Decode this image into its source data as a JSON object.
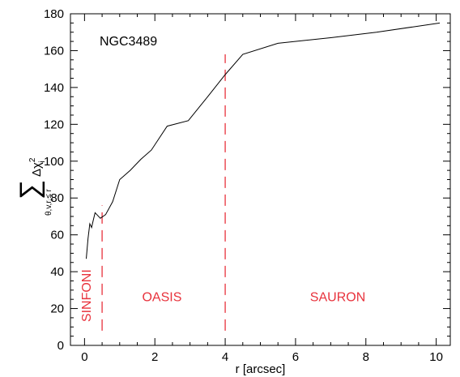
{
  "chart_data": {
    "type": "line",
    "title": "NGC3489",
    "xlabel": "r [arcsec]",
    "ylabel": "Σ θ,v,r_i≤r Δχ²_i",
    "ylabel_parts": {
      "sum_symbol": "∑",
      "subscript": "θ,v,r",
      "subscript_i": "i",
      "subscript_rest": "≤ r",
      "delta_chi": "Δχ",
      "chi_sup": "2",
      "chi_sub": "i"
    },
    "xlim": [
      -0.4,
      10.4
    ],
    "ylim": [
      0,
      180
    ],
    "xticks": [
      0,
      2,
      4,
      6,
      8,
      10
    ],
    "yticks": [
      0,
      20,
      40,
      60,
      80,
      100,
      120,
      140,
      160,
      180
    ],
    "grid": false,
    "series": [
      {
        "color": "#000000",
        "x": [
          0.05,
          0.1,
          0.15,
          0.2,
          0.25,
          0.3,
          0.35,
          0.45,
          0.6,
          0.8,
          1.0,
          1.3,
          1.6,
          1.9,
          2.35,
          2.95,
          3.5,
          4.0,
          4.5,
          5.5,
          7.0,
          8.3,
          10.1
        ],
        "y": [
          47,
          58,
          66,
          64,
          68,
          72,
          71,
          69,
          71,
          78,
          90,
          95,
          101,
          106,
          119,
          122,
          135,
          147,
          158,
          164,
          167,
          170,
          175
        ]
      }
    ],
    "dividers": [
      {
        "x": 0.5,
        "y_range": [
          8,
          76
        ],
        "color": "#e8323c"
      },
      {
        "x": 4.0,
        "y_range": [
          8,
          158
        ],
        "color": "#e8323c"
      }
    ],
    "region_labels": [
      {
        "text": "SINFONI",
        "x": 0.18,
        "y": 27,
        "rotate": true
      },
      {
        "text": "OASIS",
        "x": 2.2,
        "y": 24
      },
      {
        "text": "SAURON",
        "x": 7.2,
        "y": 24
      }
    ],
    "annotation_color": "#e8323c"
  }
}
